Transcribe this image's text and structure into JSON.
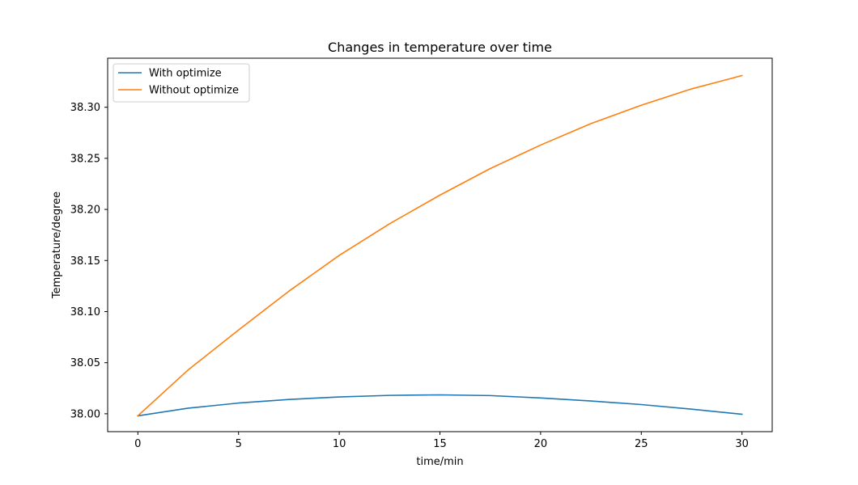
{
  "chart_data": {
    "type": "line",
    "title": "Changes in temperature over time",
    "xlabel": "time/min",
    "ylabel": "Temperature/degree",
    "xlim": [
      -1.5,
      31.5
    ],
    "ylim": [
      37.9825,
      38.348
    ],
    "x_ticks": [
      0,
      5,
      10,
      15,
      20,
      25,
      30
    ],
    "x_tick_labels": [
      "0",
      "5",
      "10",
      "15",
      "20",
      "25",
      "30"
    ],
    "y_ticks": [
      38.0,
      38.05,
      38.1,
      38.15,
      38.2,
      38.25,
      38.3
    ],
    "y_tick_labels": [
      "38.00",
      "38.05",
      "38.10",
      "38.15",
      "38.20",
      "38.25",
      "38.30"
    ],
    "grid": false,
    "legend_position": "top-left",
    "x": [
      0,
      2.5,
      5,
      7.5,
      10,
      12.5,
      15,
      17.5,
      20,
      22.5,
      25,
      27.5,
      30
    ],
    "series": [
      {
        "name": "With optimize",
        "color": "#1f77b4",
        "values": [
          37.998,
          38.0055,
          38.0105,
          38.014,
          38.0165,
          38.018,
          38.0185,
          38.0178,
          38.0155,
          38.0125,
          38.009,
          38.0045,
          37.9995
        ]
      },
      {
        "name": "Without optimize",
        "color": "#ff7f0e",
        "values": [
          37.998,
          38.043,
          38.082,
          38.12,
          38.155,
          38.186,
          38.214,
          38.24,
          38.263,
          38.284,
          38.302,
          38.318,
          38.331
        ]
      }
    ]
  }
}
